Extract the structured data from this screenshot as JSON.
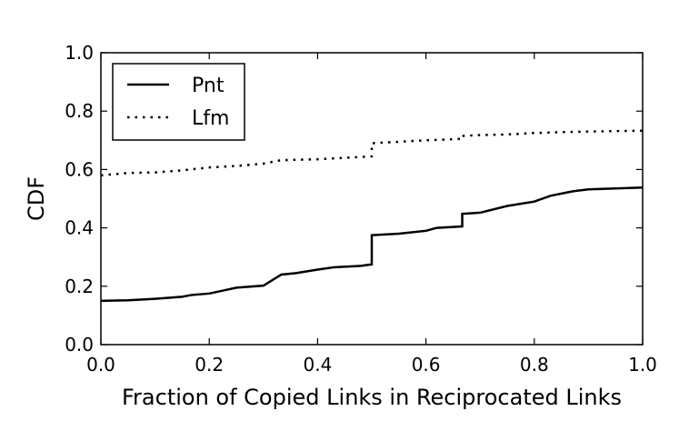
{
  "chart_data": {
    "type": "line",
    "title": "",
    "xlabel": "Fraction of Copied Links in Reciprocated Links",
    "ylabel": "CDF",
    "xlim": [
      0.0,
      1.0
    ],
    "ylim": [
      0.0,
      1.0
    ],
    "x_ticks": [
      "0.0",
      "0.2",
      "0.4",
      "0.6",
      "0.8",
      "1.0"
    ],
    "y_ticks": [
      "0.0",
      "0.2",
      "0.4",
      "0.6",
      "0.8",
      "1.0"
    ],
    "grid": false,
    "legend_position": "top-left",
    "series": [
      {
        "name": "Pnt",
        "style": "solid",
        "color": "#000000",
        "points": [
          [
            0.0,
            0.15
          ],
          [
            0.05,
            0.152
          ],
          [
            0.1,
            0.157
          ],
          [
            0.15,
            0.164
          ],
          [
            0.167,
            0.17
          ],
          [
            0.2,
            0.175
          ],
          [
            0.25,
            0.195
          ],
          [
            0.3,
            0.202
          ],
          [
            0.333,
            0.24
          ],
          [
            0.36,
            0.245
          ],
          [
            0.4,
            0.257
          ],
          [
            0.43,
            0.265
          ],
          [
            0.48,
            0.27
          ],
          [
            0.5,
            0.275
          ],
          [
            0.5,
            0.375
          ],
          [
            0.55,
            0.38
          ],
          [
            0.6,
            0.39
          ],
          [
            0.62,
            0.4
          ],
          [
            0.667,
            0.405
          ],
          [
            0.667,
            0.448
          ],
          [
            0.7,
            0.452
          ],
          [
            0.75,
            0.475
          ],
          [
            0.8,
            0.49
          ],
          [
            0.83,
            0.51
          ],
          [
            0.87,
            0.525
          ],
          [
            0.9,
            0.532
          ],
          [
            0.95,
            0.535
          ],
          [
            1.0,
            0.538
          ]
        ]
      },
      {
        "name": "Lfm",
        "style": "dotted",
        "color": "#000000",
        "points": [
          [
            0.0,
            0.58
          ],
          [
            0.05,
            0.588
          ],
          [
            0.1,
            0.59
          ],
          [
            0.15,
            0.597
          ],
          [
            0.2,
            0.607
          ],
          [
            0.25,
            0.612
          ],
          [
            0.3,
            0.62
          ],
          [
            0.333,
            0.632
          ],
          [
            0.4,
            0.635
          ],
          [
            0.45,
            0.64
          ],
          [
            0.5,
            0.645
          ],
          [
            0.5,
            0.69
          ],
          [
            0.55,
            0.695
          ],
          [
            0.6,
            0.7
          ],
          [
            0.667,
            0.705
          ],
          [
            0.667,
            0.715
          ],
          [
            0.7,
            0.718
          ],
          [
            0.75,
            0.72
          ],
          [
            0.8,
            0.725
          ],
          [
            0.85,
            0.728
          ],
          [
            0.9,
            0.73
          ],
          [
            1.0,
            0.733
          ]
        ]
      }
    ]
  }
}
